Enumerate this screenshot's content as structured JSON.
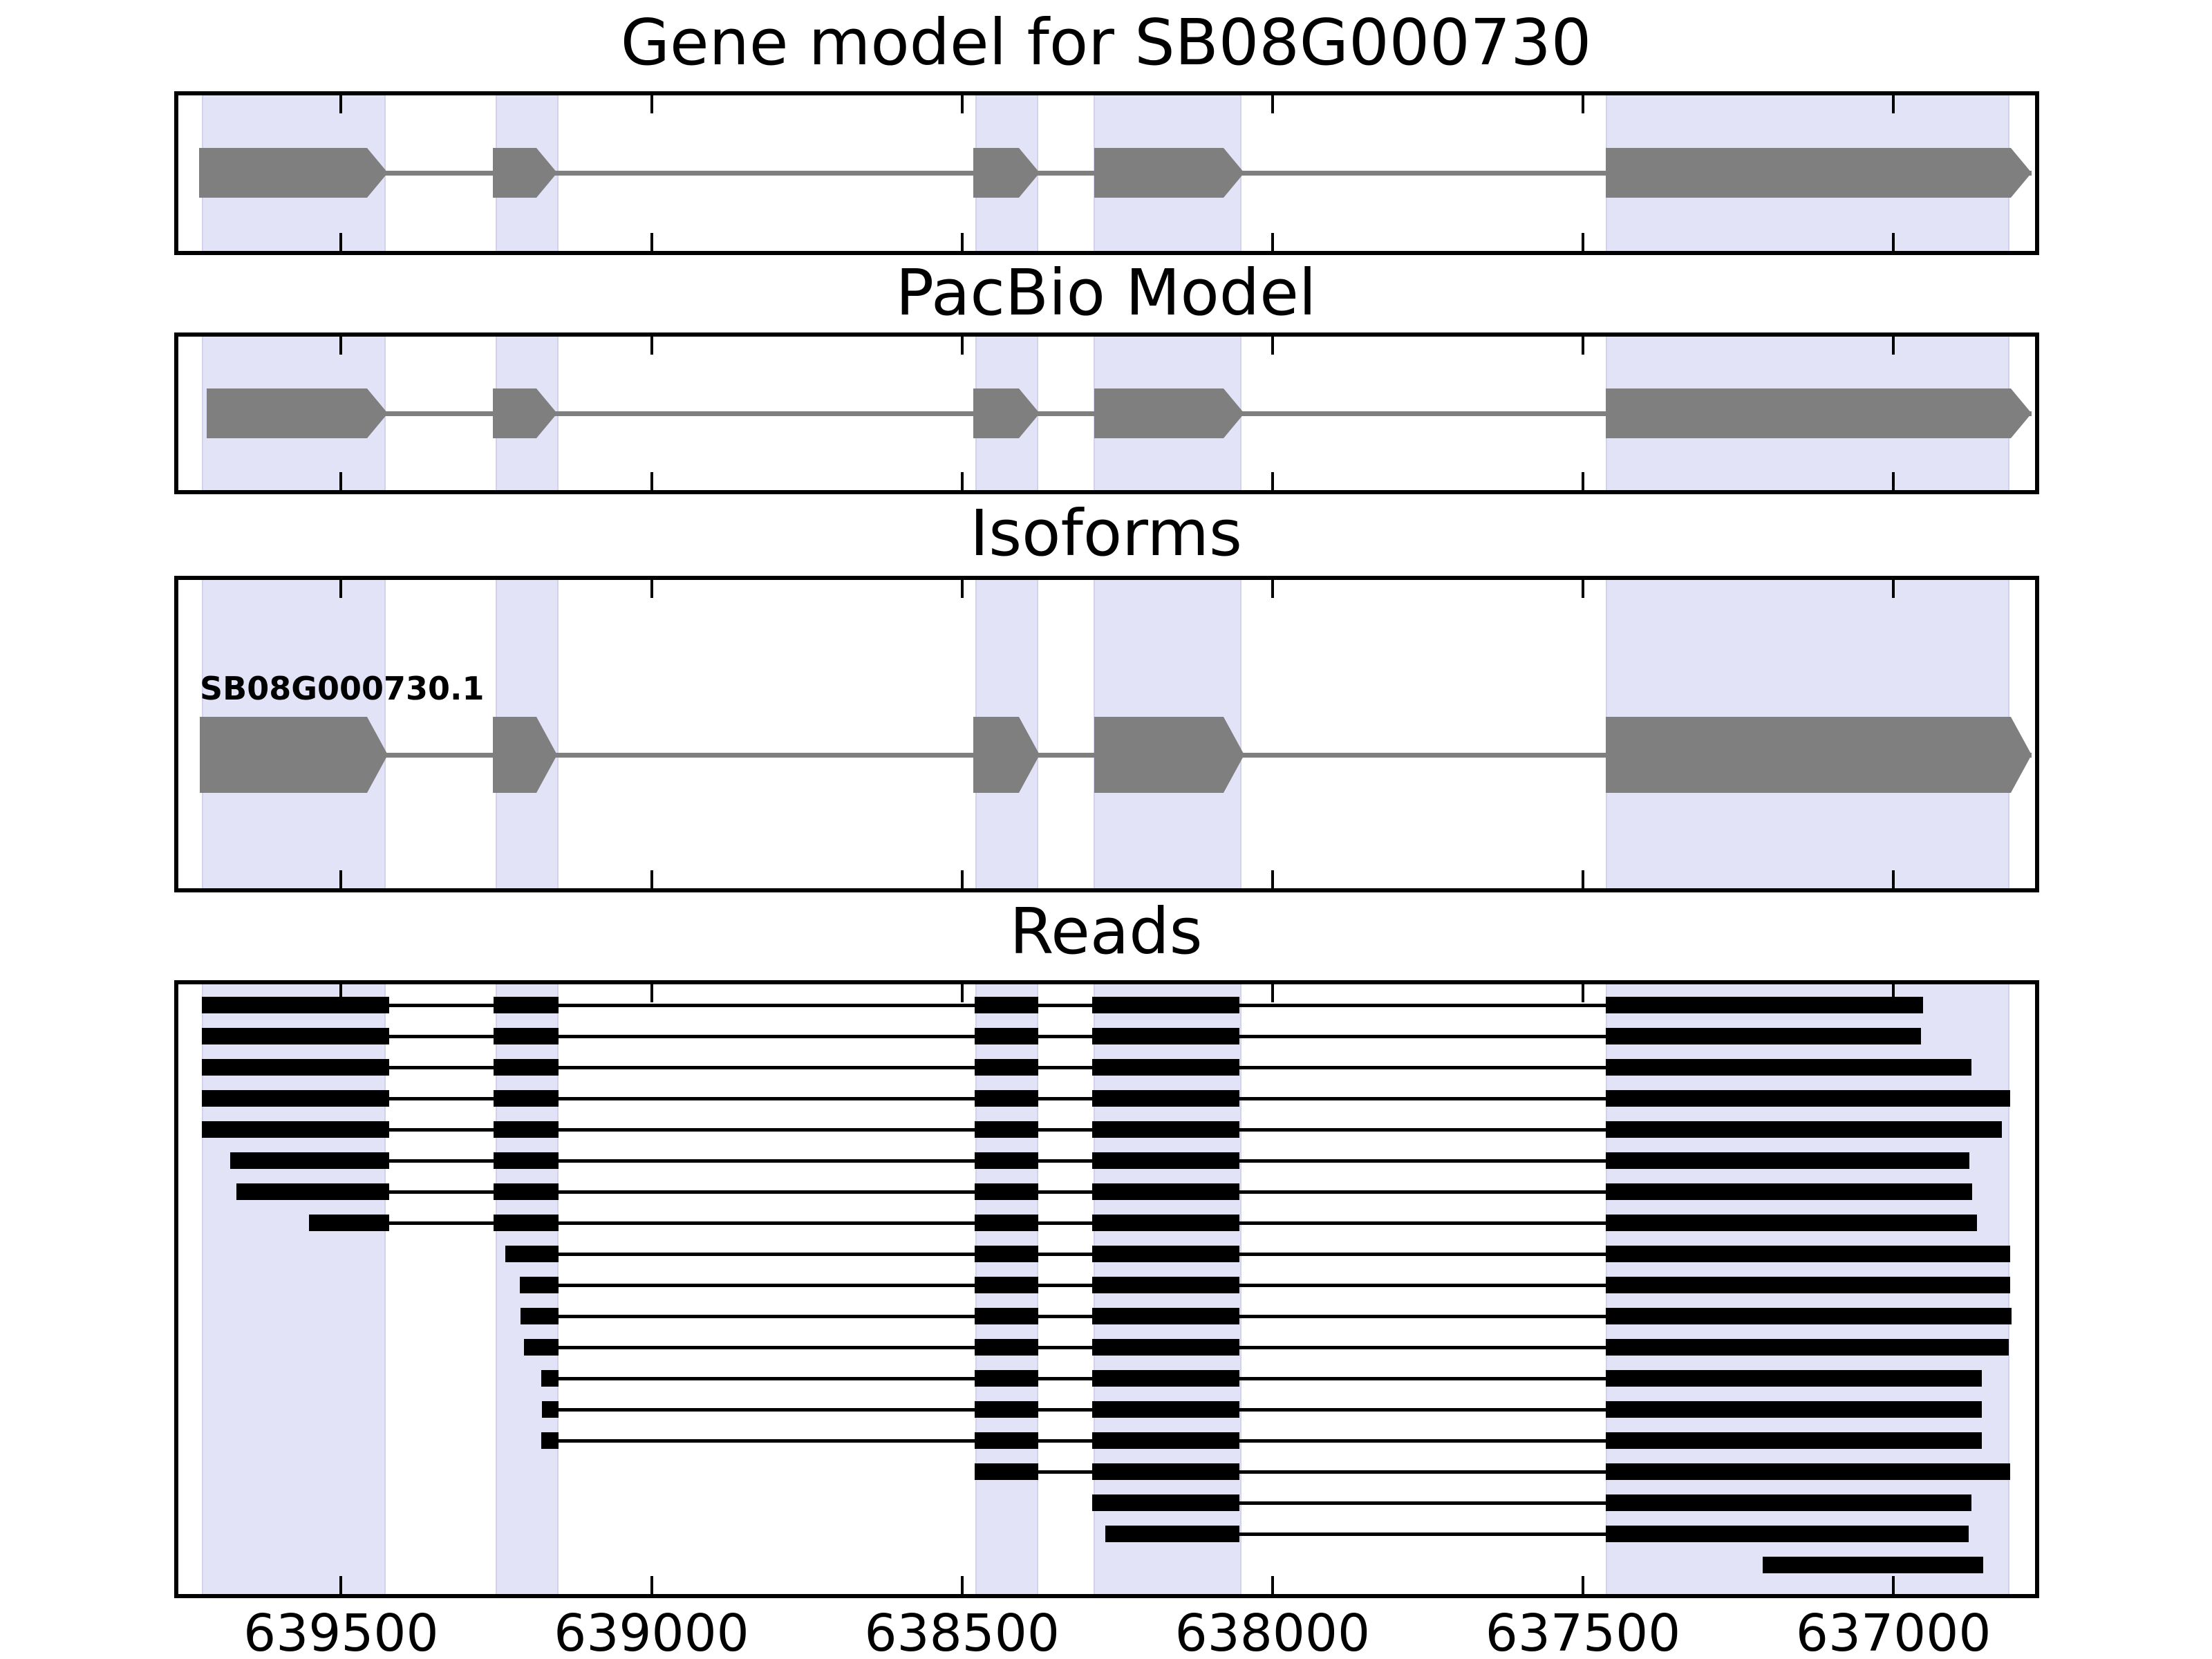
{
  "figure_title": "Gene model for SB08G000730",
  "colors": {
    "highlight_band": "#e3e3f8",
    "exon_gray": "#7f7f7f",
    "read_black": "#000000",
    "border_black": "#000000",
    "background": "#ffffff"
  },
  "chart_data": {
    "type": "gene-model-tracks",
    "title": "Gene model for SB08G000730",
    "x_axis": {
      "min": 636772,
      "max": 639762,
      "reversed": true,
      "ticks": [
        639500,
        639000,
        638500,
        638000,
        637500,
        637000
      ],
      "tick_labels": [
        "639500",
        "639000",
        "638500",
        "638000",
        "637500",
        "637000"
      ]
    },
    "highlight_bands": [
      [
        639724,
        639428
      ],
      [
        639251,
        639150
      ],
      [
        638479,
        638377
      ],
      [
        638288,
        638050
      ],
      [
        637463,
        636813
      ]
    ],
    "tracks": [
      {
        "id": "gene",
        "title": "Gene model for SB08G000730",
        "exons": [
          [
            639729,
            639425
          ],
          [
            639256,
            639152
          ],
          [
            638482,
            638375
          ],
          [
            638287,
            638046
          ],
          [
            637463,
            636778
          ]
        ]
      },
      {
        "id": "pacbio",
        "title": "PacBio Model",
        "exons": [
          [
            639716,
            639425
          ],
          [
            639256,
            639152
          ],
          [
            638482,
            638375
          ],
          [
            638287,
            638046
          ],
          [
            637463,
            636778
          ]
        ]
      },
      {
        "id": "isoforms",
        "title": "Isoforms",
        "isoform_name": "SB08G000730.1",
        "exons": [
          [
            639727,
            639425
          ],
          [
            639256,
            639152
          ],
          [
            638482,
            638375
          ],
          [
            638287,
            638046
          ],
          [
            637463,
            636778
          ]
        ]
      },
      {
        "id": "reads",
        "title": "Reads",
        "reads": [
          [
            [
              639724,
              639422
            ],
            [
              639254,
              639150
            ],
            [
              638480,
              638377
            ],
            [
              638290,
              638053
            ],
            [
              637463,
              636952
            ]
          ],
          [
            [
              639724,
              639422
            ],
            [
              639254,
              639150
            ],
            [
              638480,
              638377
            ],
            [
              638290,
              638053
            ],
            [
              637463,
              636956
            ]
          ],
          [
            [
              639724,
              639422
            ],
            [
              639254,
              639150
            ],
            [
              638480,
              638377
            ],
            [
              638290,
              638053
            ],
            [
              637463,
              636874
            ]
          ],
          [
            [
              639724,
              639422
            ],
            [
              639254,
              639150
            ],
            [
              638480,
              638377
            ],
            [
              638290,
              638053
            ],
            [
              637463,
              636812
            ]
          ],
          [
            [
              639724,
              639422
            ],
            [
              639254,
              639150
            ],
            [
              638480,
              638377
            ],
            [
              638290,
              638053
            ],
            [
              637463,
              636825
            ]
          ],
          [
            [
              639678,
              639422
            ],
            [
              639254,
              639150
            ],
            [
              638480,
              638377
            ],
            [
              638290,
              638053
            ],
            [
              637463,
              636878
            ]
          ],
          [
            [
              639668,
              639422
            ],
            [
              639254,
              639150
            ],
            [
              638480,
              638377
            ],
            [
              638290,
              638053
            ],
            [
              637463,
              636873
            ]
          ],
          [
            [
              639552,
              639422
            ],
            [
              639254,
              639150
            ],
            [
              638480,
              638377
            ],
            [
              638290,
              638053
            ],
            [
              637463,
              636866
            ]
          ],
          [
            [
              639236,
              639150
            ],
            [
              638480,
              638377
            ],
            [
              638290,
              638053
            ],
            [
              637463,
              636812
            ]
          ],
          [
            [
              639212,
              639150
            ],
            [
              638480,
              638377
            ],
            [
              638290,
              638053
            ],
            [
              637463,
              636812
            ]
          ],
          [
            [
              639211,
              639150
            ],
            [
              638480,
              638377
            ],
            [
              638290,
              638053
            ],
            [
              637463,
              636810
            ]
          ],
          [
            [
              639205,
              639150
            ],
            [
              638480,
              638377
            ],
            [
              638290,
              638053
            ],
            [
              637463,
              636814
            ]
          ],
          [
            [
              639178,
              639150
            ],
            [
              638480,
              638377
            ],
            [
              638290,
              638053
            ],
            [
              637463,
              636858
            ]
          ],
          [
            [
              639177,
              639150
            ],
            [
              638480,
              638377
            ],
            [
              638290,
              638053
            ],
            [
              637463,
              636858
            ]
          ],
          [
            [
              639178,
              639150
            ],
            [
              638480,
              638377
            ],
            [
              638290,
              638053
            ],
            [
              637463,
              636858
            ]
          ],
          [
            [
              638480,
              638377
            ],
            [
              638290,
              638053
            ],
            [
              637463,
              636812
            ]
          ],
          [
            [
              638290,
              638053
            ],
            [
              637463,
              636874
            ]
          ],
          [
            [
              638269,
              638053
            ],
            [
              637463,
              636879
            ]
          ],
          [
            [
              637211,
              636856
            ]
          ]
        ]
      }
    ]
  }
}
